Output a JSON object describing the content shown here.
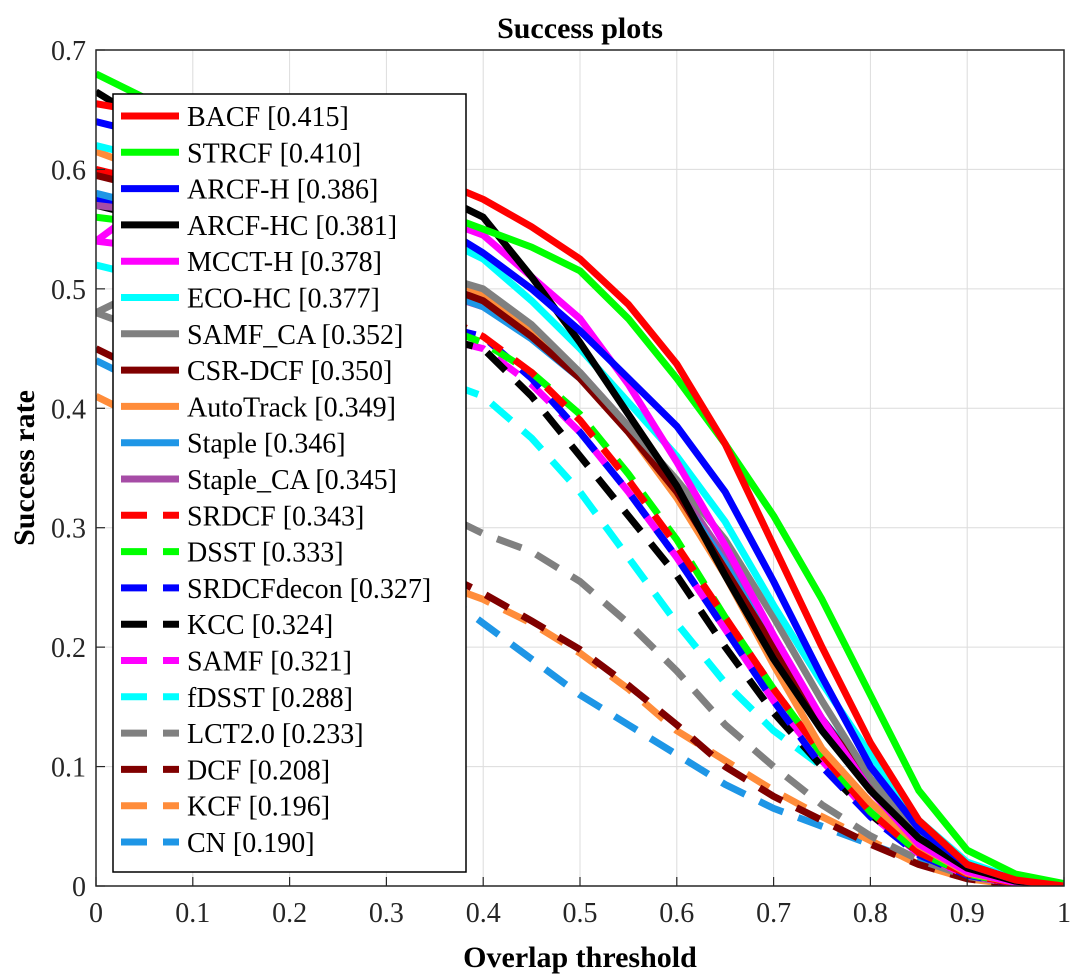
{
  "chart_data": {
    "type": "line",
    "title": "Success plots",
    "xlabel": "Overlap threshold",
    "ylabel": "Success rate",
    "xlim": [
      0,
      1
    ],
    "ylim": [
      0,
      0.7
    ],
    "xticks": [
      "0",
      "0.1",
      "0.2",
      "0.3",
      "0.4",
      "0.5",
      "0.6",
      "0.7",
      "0.8",
      "0.9",
      "1"
    ],
    "yticks": [
      "0",
      "0.1",
      "0.2",
      "0.3",
      "0.4",
      "0.5",
      "0.6",
      "0.7"
    ],
    "grid": true,
    "legend_position": "upper-left",
    "x": [
      0,
      0.05,
      0.1,
      0.15,
      0.2,
      0.25,
      0.3,
      0.35,
      0.4,
      0.45,
      0.5,
      0.55,
      0.6,
      0.65,
      0.7,
      0.75,
      0.8,
      0.85,
      0.9,
      0.95,
      1
    ],
    "series": [
      {
        "name": "BACF [0.415]",
        "color": "#ff0000",
        "style": "solid",
        "values": [
          0.655,
          0.648,
          0.64,
          0.632,
          0.622,
          0.61,
          0.598,
          0.592,
          0.575,
          0.552,
          0.525,
          0.487,
          0.437,
          0.37,
          0.285,
          0.2,
          0.12,
          0.055,
          0.018,
          0.005,
          0.0
        ]
      },
      {
        "name": "STRCF [0.410]",
        "color": "#00ff00",
        "style": "solid",
        "values": [
          0.68,
          0.66,
          0.64,
          0.62,
          0.6,
          0.585,
          0.575,
          0.565,
          0.55,
          0.535,
          0.515,
          0.475,
          0.425,
          0.37,
          0.31,
          0.24,
          0.16,
          0.08,
          0.03,
          0.01,
          0.002
        ]
      },
      {
        "name": "ARCF-H [0.386]",
        "color": "#0000ff",
        "style": "solid",
        "values": [
          0.64,
          0.63,
          0.62,
          0.61,
          0.6,
          0.59,
          0.575,
          0.555,
          0.53,
          0.5,
          0.465,
          0.425,
          0.385,
          0.33,
          0.255,
          0.175,
          0.1,
          0.048,
          0.018,
          0.005,
          0.0
        ]
      },
      {
        "name": "ARCF-HC [0.381]",
        "color": "#000000",
        "style": "solid",
        "values": [
          0.665,
          0.64,
          0.625,
          0.615,
          0.605,
          0.598,
          0.59,
          0.58,
          0.56,
          0.51,
          0.455,
          0.395,
          0.335,
          0.26,
          0.19,
          0.13,
          0.08,
          0.04,
          0.015,
          0.004,
          0.0
        ]
      },
      {
        "name": "MCCT-H [0.378]",
        "color": "#ff00ff",
        "style": "solid",
        "values": [
          0.54,
          0.57,
          0.585,
          0.59,
          0.59,
          0.58,
          0.57,
          0.56,
          0.545,
          0.51,
          0.475,
          0.42,
          0.355,
          0.285,
          0.21,
          0.14,
          0.08,
          0.035,
          0.012,
          0.003,
          0.0
        ]
      },
      {
        "name": "ECO-HC [0.377]",
        "color": "#00ffff",
        "style": "solid",
        "values": [
          0.62,
          0.61,
          0.6,
          0.59,
          0.58,
          0.57,
          0.56,
          0.545,
          0.525,
          0.49,
          0.45,
          0.405,
          0.36,
          0.305,
          0.235,
          0.17,
          0.11,
          0.055,
          0.02,
          0.006,
          0.0
        ]
      },
      {
        "name": "SAMF_CA [0.352]",
        "color": "#808080",
        "style": "solid",
        "values": [
          0.48,
          0.5,
          0.515,
          0.522,
          0.525,
          0.524,
          0.52,
          0.512,
          0.5,
          0.47,
          0.43,
          0.385,
          0.34,
          0.29,
          0.225,
          0.155,
          0.09,
          0.04,
          0.012,
          0.003,
          0.0
        ]
      },
      {
        "name": "CSR-DCF [0.350]",
        "color": "#800000",
        "style": "solid",
        "values": [
          0.595,
          0.585,
          0.57,
          0.555,
          0.54,
          0.525,
          0.515,
          0.505,
          0.49,
          0.46,
          0.425,
          0.38,
          0.33,
          0.265,
          0.2,
          0.14,
          0.085,
          0.04,
          0.013,
          0.003,
          0.0
        ]
      },
      {
        "name": "AutoTrack [0.349]",
        "color": "#ff8c3a",
        "style": "solid",
        "values": [
          0.615,
          0.6,
          0.585,
          0.57,
          0.555,
          0.54,
          0.528,
          0.515,
          0.495,
          0.465,
          0.425,
          0.38,
          0.325,
          0.26,
          0.185,
          0.115,
          0.07,
          0.034,
          0.011,
          0.003,
          0.0
        ]
      },
      {
        "name": "Staple [0.346]",
        "color": "#1e96e6",
        "style": "solid",
        "values": [
          0.58,
          0.57,
          0.56,
          0.548,
          0.535,
          0.523,
          0.512,
          0.5,
          0.485,
          0.458,
          0.425,
          0.38,
          0.33,
          0.27,
          0.2,
          0.14,
          0.09,
          0.045,
          0.015,
          0.004,
          0.0
        ]
      },
      {
        "name": "Staple_CA [0.345]",
        "color": "#a64ca6",
        "style": "solid",
        "values": [
          0.57,
          0.565,
          0.555,
          0.545,
          0.532,
          0.52,
          0.51,
          0.498,
          0.485,
          0.46,
          0.43,
          0.385,
          0.335,
          0.275,
          0.205,
          0.14,
          0.085,
          0.04,
          0.013,
          0.003,
          0.0
        ]
      },
      {
        "name": "SRDCF [0.343]",
        "color": "#ff0000",
        "style": "dashed",
        "values": [
          0.6,
          0.59,
          0.575,
          0.56,
          0.54,
          0.52,
          0.5,
          0.48,
          0.46,
          0.43,
          0.39,
          0.34,
          0.285,
          0.225,
          0.165,
          0.11,
          0.062,
          0.028,
          0.01,
          0.002,
          0.0
        ]
      },
      {
        "name": "DSST [0.333]",
        "color": "#00ff00",
        "style": "dashed",
        "values": [
          0.56,
          0.555,
          0.545,
          0.53,
          0.515,
          0.5,
          0.485,
          0.47,
          0.455,
          0.43,
          0.395,
          0.345,
          0.29,
          0.225,
          0.165,
          0.11,
          0.062,
          0.028,
          0.01,
          0.002,
          0.0
        ]
      },
      {
        "name": "SRDCFdecon [0.327]",
        "color": "#0000ff",
        "style": "dashed",
        "values": [
          0.575,
          0.565,
          0.55,
          0.535,
          0.518,
          0.5,
          0.482,
          0.47,
          0.46,
          0.425,
          0.38,
          0.33,
          0.275,
          0.215,
          0.155,
          0.1,
          0.058,
          0.026,
          0.009,
          0.002,
          0.0
        ]
      },
      {
        "name": "KCC [0.324]",
        "color": "#000000",
        "style": "dashed",
        "values": [
          0.57,
          0.56,
          0.545,
          0.53,
          0.51,
          0.49,
          0.47,
          0.46,
          0.45,
          0.41,
          0.36,
          0.31,
          0.26,
          0.2,
          0.145,
          0.1,
          0.06,
          0.028,
          0.01,
          0.002,
          0.0
        ]
      },
      {
        "name": "SAMF [0.321]",
        "color": "#ff00ff",
        "style": "dashed",
        "values": [
          0.54,
          0.535,
          0.525,
          0.515,
          0.5,
          0.485,
          0.47,
          0.46,
          0.45,
          0.42,
          0.38,
          0.33,
          0.275,
          0.215,
          0.155,
          0.105,
          0.06,
          0.027,
          0.009,
          0.002,
          0.0
        ]
      },
      {
        "name": "fDSST [0.288]",
        "color": "#00ffff",
        "style": "dashed",
        "values": [
          0.52,
          0.51,
          0.5,
          0.485,
          0.47,
          0.455,
          0.44,
          0.425,
          0.41,
          0.375,
          0.33,
          0.275,
          0.22,
          0.17,
          0.13,
          0.1,
          0.065,
          0.03,
          0.01,
          0.002,
          0.0
        ]
      },
      {
        "name": "LCT2.0 [0.233]",
        "color": "#808080",
        "style": "dashed",
        "values": [
          0.48,
          0.465,
          0.445,
          0.42,
          0.395,
          0.37,
          0.34,
          0.315,
          0.295,
          0.28,
          0.255,
          0.22,
          0.18,
          0.135,
          0.1,
          0.068,
          0.042,
          0.022,
          0.008,
          0.002,
          0.0
        ]
      },
      {
        "name": "DCF [0.208]",
        "color": "#800000",
        "style": "dashed",
        "values": [
          0.45,
          0.43,
          0.405,
          0.38,
          0.35,
          0.32,
          0.29,
          0.265,
          0.245,
          0.222,
          0.198,
          0.168,
          0.135,
          0.1,
          0.075,
          0.055,
          0.035,
          0.018,
          0.006,
          0.001,
          0.0
        ]
      },
      {
        "name": "KCF [0.196]",
        "color": "#ff8c3a",
        "style": "dashed",
        "values": [
          0.41,
          0.39,
          0.365,
          0.34,
          0.315,
          0.29,
          0.27,
          0.255,
          0.24,
          0.22,
          0.195,
          0.165,
          0.13,
          0.105,
          0.08,
          0.058,
          0.038,
          0.018,
          0.006,
          0.001,
          0.0
        ]
      },
      {
        "name": "CN [0.190]",
        "color": "#1e96e6",
        "style": "dashed",
        "values": [
          0.44,
          0.42,
          0.395,
          0.37,
          0.34,
          0.31,
          0.28,
          0.25,
          0.22,
          0.19,
          0.16,
          0.135,
          0.11,
          0.085,
          0.065,
          0.05,
          0.035,
          0.02,
          0.008,
          0.002,
          0.0
        ]
      }
    ]
  }
}
